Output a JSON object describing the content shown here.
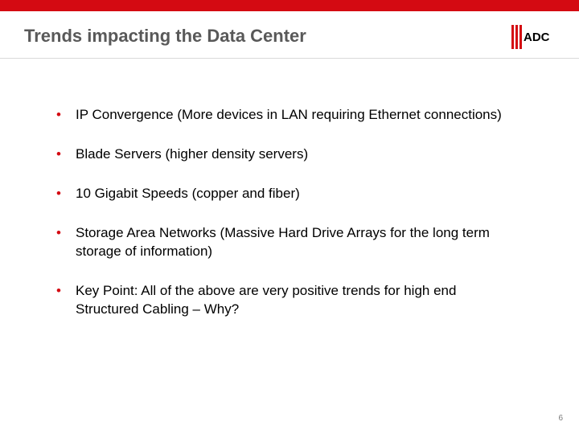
{
  "colors": {
    "accent_red": "#d40a12",
    "title_gray": "#595959",
    "divider": "#d9d9d9",
    "text": "#000000",
    "page_num": "#7a7a7a",
    "background": "#ffffff"
  },
  "title": "Trends impacting the Data Center",
  "logo": {
    "text": "ADC"
  },
  "bullets": [
    "IP Convergence (More devices in LAN requiring Ethernet connections)",
    "Blade Servers (higher density servers)",
    "10 Gigabit Speeds (copper and fiber)",
    "Storage Area Networks (Massive Hard Drive Arrays for the long term storage of information)",
    "Key Point:  All of the above are very positive trends for high end Structured Cabling – Why?"
  ],
  "page_number": "6",
  "bullet_glyph": "•"
}
